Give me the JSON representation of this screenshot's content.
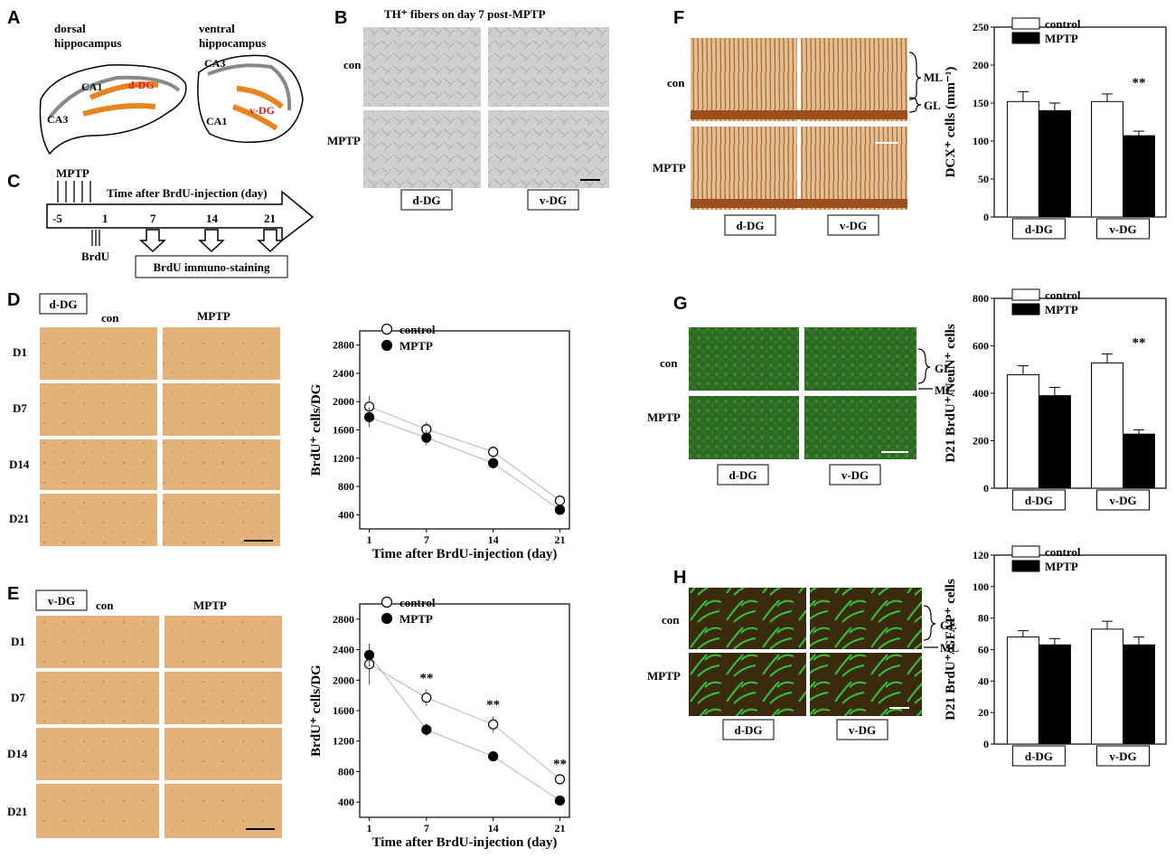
{
  "panels": {
    "A": "A",
    "B": "B",
    "C": "C",
    "D": "D",
    "E": "E",
    "F": "F",
    "G": "G",
    "H": "H"
  },
  "panel_a": {
    "dorsal_title_1": "dorsal",
    "dorsal_title_2": "hippocampus",
    "ventral_title_1": "ventral",
    "ventral_title_2": "hippocampus",
    "regions": [
      "CA1",
      "CA3",
      "d-DG",
      "CA3",
      "CA1",
      "v-DG"
    ],
    "dg_color": "#e8841f",
    "dg_label_color": "#e31a1c"
  },
  "panel_b": {
    "title": "TH⁺ fibers on day 7 post-MPTP",
    "rows": [
      "con",
      "MPTP"
    ],
    "cols": [
      "d-DG",
      "v-DG"
    ]
  },
  "panel_c": {
    "mptp": "MPTP",
    "axis_title": "Time after BrdU-injection (day)",
    "ticks": [
      "-5",
      "1",
      "7",
      "14",
      "21"
    ],
    "brdu": "BrdU",
    "staining": "BrdU immuno-staining"
  },
  "panel_d": {
    "region": "d-DG",
    "cols": [
      "con",
      "MPTP"
    ],
    "rows": [
      "D1",
      "D7",
      "D14",
      "D21"
    ]
  },
  "panel_e": {
    "region": "v-DG",
    "cols": [
      "con",
      "MPTP"
    ],
    "rows": [
      "D1",
      "D7",
      "D14",
      "D21"
    ]
  },
  "panel_f": {
    "rows": [
      "con",
      "MPTP"
    ],
    "cols": [
      "d-DG",
      "v-DG"
    ],
    "layers": [
      "ML",
      "GL"
    ],
    "stain_color": "#b06a2c"
  },
  "panel_g": {
    "rows": [
      "con",
      "MPTP"
    ],
    "cols": [
      "d-DG",
      "v-DG"
    ],
    "layers": [
      "GL",
      "ML"
    ],
    "stain_color": "#3b8a2a"
  },
  "panel_h": {
    "rows": [
      "con",
      "MPTP"
    ],
    "cols": [
      "d-DG",
      "v-DG"
    ],
    "layers": [
      "GL",
      "ML"
    ],
    "stain_color": "#35c23a"
  },
  "chart_data": [
    {
      "id": "D-line",
      "type": "line",
      "xlabel": "Time after BrdU-injection (day)",
      "ylabel": "BrdU⁺ cells/DG",
      "x": [
        1,
        7,
        14,
        21
      ],
      "xticks": [
        1,
        7,
        14,
        21
      ],
      "ylim": [
        200,
        3000
      ],
      "yticks": [
        400,
        800,
        1200,
        1600,
        2000,
        2400,
        2800
      ],
      "legend": "top-left",
      "series": [
        {
          "name": "control",
          "values": [
            1930,
            1610,
            1290,
            600
          ],
          "err": [
            150,
            100,
            80,
            40
          ],
          "marker": "open"
        },
        {
          "name": "MPTP",
          "values": [
            1780,
            1490,
            1130,
            470
          ],
          "err": [
            140,
            110,
            70,
            30
          ],
          "marker": "filled"
        }
      ]
    },
    {
      "id": "E-line",
      "type": "line",
      "xlabel": "Time after BrdU-injection (day)",
      "ylabel": "BrdU⁺ cells/DG",
      "x": [
        1,
        7,
        14,
        21
      ],
      "xticks": [
        1,
        7,
        14,
        21
      ],
      "ylim": [
        200,
        3000
      ],
      "yticks": [
        400,
        800,
        1200,
        1600,
        2000,
        2400,
        2800
      ],
      "legend": "top-left",
      "significance": [
        "",
        "**",
        "**",
        "**"
      ],
      "series": [
        {
          "name": "control",
          "values": [
            2210,
            1770,
            1420,
            700
          ],
          "err": [
            270,
            110,
            110,
            50
          ],
          "marker": "open"
        },
        {
          "name": "MPTP",
          "values": [
            2330,
            1350,
            1000,
            420
          ],
          "err": [
            150,
            80,
            60,
            30
          ],
          "marker": "filled"
        }
      ]
    },
    {
      "id": "F-bar",
      "type": "bar",
      "ylabel": "DCX⁺ cells (mm⁻¹)",
      "categories": [
        "d-DG",
        "v-DG"
      ],
      "ylim": [
        0,
        250
      ],
      "yticks": [
        0,
        50,
        100,
        150,
        200,
        250
      ],
      "legend": "top-left",
      "significance": [
        "",
        "**"
      ],
      "series": [
        {
          "name": "control",
          "values": [
            152,
            152
          ],
          "err": [
            13,
            10
          ],
          "fill": "#ffffff"
        },
        {
          "name": "MPTP",
          "values": [
            140,
            107
          ],
          "err": [
            10,
            6
          ],
          "fill": "#000000"
        }
      ]
    },
    {
      "id": "G-bar",
      "type": "bar",
      "ylabel": "D21 BrdU⁺/NeuN⁺ cells",
      "categories": [
        "d-DG",
        "v-DG"
      ],
      "ylim": [
        0,
        800
      ],
      "yticks": [
        0,
        200,
        400,
        600,
        800
      ],
      "legend": "top-left",
      "significance": [
        "",
        "**"
      ],
      "series": [
        {
          "name": "control",
          "values": [
            478,
            528
          ],
          "err": [
            38,
            38
          ],
          "fill": "#ffffff"
        },
        {
          "name": "MPTP",
          "values": [
            390,
            228
          ],
          "err": [
            35,
            18
          ],
          "fill": "#000000"
        }
      ]
    },
    {
      "id": "H-bar",
      "type": "bar",
      "ylabel": "D21 BrdU⁺/GFAP⁺ cells",
      "categories": [
        "d-DG",
        "v-DG"
      ],
      "ylim": [
        0,
        120
      ],
      "yticks": [
        0,
        20,
        40,
        60,
        80,
        100,
        120
      ],
      "legend": "top-left",
      "series": [
        {
          "name": "control",
          "values": [
            68,
            73
          ],
          "err": [
            4,
            5
          ],
          "fill": "#ffffff"
        },
        {
          "name": "MPTP",
          "values": [
            63,
            63
          ],
          "err": [
            4,
            5
          ],
          "fill": "#000000"
        }
      ]
    }
  ]
}
